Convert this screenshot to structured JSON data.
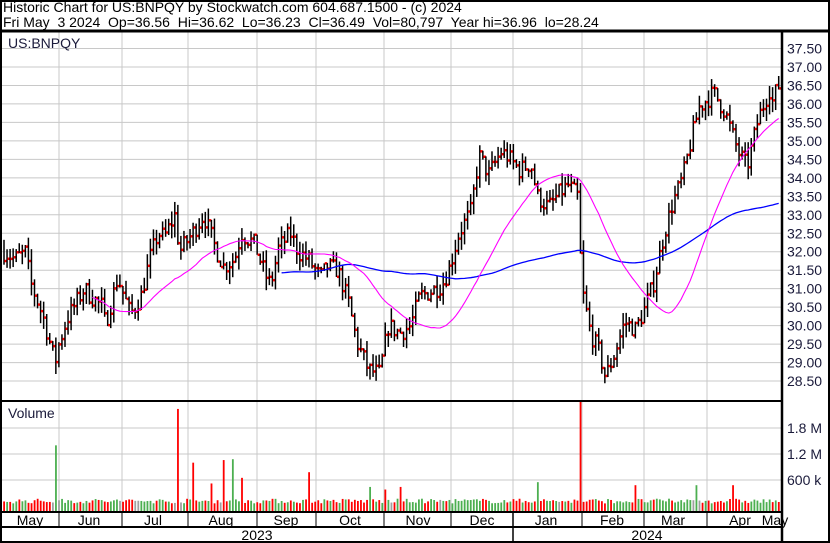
{
  "header": {
    "title_line": "Historic Chart for US:BNPQY by Stockwatch.com 604.687.1500 - (c) 2024",
    "quote_line": "Fri May  3 2024  Op=36.56  Hi=36.62  Lo=36.23  Cl=36.49  Vol=80,797  Year hi=36.96  lo=28.24"
  },
  "chart_data": [
    {
      "type": "ohlc",
      "label": "US:BNPQY",
      "y_ticks": [
        "28.50",
        "29.00",
        "29.50",
        "30.00",
        "30.50",
        "31.00",
        "31.50",
        "32.00",
        "32.50",
        "33.00",
        "33.50",
        "34.00",
        "34.50",
        "35.00",
        "35.50",
        "36.00",
        "36.50",
        "37.00",
        "37.50"
      ],
      "ylim": [
        28.25,
        37.75
      ],
      "grid": true,
      "colors": {
        "bar": "#000000",
        "close_tick": "#ff0000",
        "ma_short": "#ff00ff",
        "ma_long": "#0000ff"
      },
      "approx_closes": [
        [
          "2023-05-04",
          32.0
        ],
        [
          "2023-05-09",
          31.8
        ],
        [
          "2023-05-15",
          32.0
        ],
        [
          "2023-05-17",
          31.2
        ],
        [
          "2023-05-22",
          30.5
        ],
        [
          "2023-05-24",
          30.2
        ],
        [
          "2023-05-30",
          29.0
        ],
        [
          "2023-06-01",
          29.5
        ],
        [
          "2023-06-05",
          30.2
        ],
        [
          "2023-06-08",
          30.5
        ],
        [
          "2023-06-13",
          31.0
        ],
        [
          "2023-06-16",
          30.8
        ],
        [
          "2023-06-22",
          30.5
        ],
        [
          "2023-06-23",
          30.0
        ],
        [
          "2023-06-29",
          31.3
        ],
        [
          "2023-07-05",
          30.3
        ],
        [
          "2023-07-10",
          30.8
        ],
        [
          "2023-07-14",
          31.8
        ],
        [
          "2023-07-18",
          32.5
        ],
        [
          "2023-07-21",
          32.4
        ],
        [
          "2023-07-26",
          33.0
        ],
        [
          "2023-07-28",
          32.0
        ],
        [
          "2023-08-03",
          32.5
        ],
        [
          "2023-08-08",
          33.0
        ],
        [
          "2023-08-14",
          32.0
        ],
        [
          "2023-08-17",
          31.6
        ],
        [
          "2023-08-22",
          31.8
        ],
        [
          "2023-08-25",
          32.5
        ],
        [
          "2023-08-31",
          32.2
        ],
        [
          "2023-09-05",
          31.4
        ],
        [
          "2023-09-08",
          31.1
        ],
        [
          "2023-09-12",
          32.1
        ],
        [
          "2023-09-18",
          32.5
        ],
        [
          "2023-09-22",
          32.0
        ],
        [
          "2023-09-27",
          31.8
        ],
        [
          "2023-10-03",
          31.3
        ],
        [
          "2023-10-06",
          31.6
        ],
        [
          "2023-10-11",
          31.5
        ],
        [
          "2023-10-16",
          30.6
        ],
        [
          "2023-10-18",
          30.0
        ],
        [
          "2023-10-20",
          29.5
        ],
        [
          "2023-10-25",
          28.8
        ],
        [
          "2023-10-30",
          28.7
        ],
        [
          "2023-11-03",
          30.0
        ],
        [
          "2023-11-08",
          29.8
        ],
        [
          "2023-11-13",
          30.0
        ],
        [
          "2023-11-17",
          30.8
        ],
        [
          "2023-11-21",
          30.9
        ],
        [
          "2023-11-27",
          31.1
        ],
        [
          "2023-11-30",
          31.5
        ],
        [
          "2023-12-05",
          32.5
        ],
        [
          "2023-12-11",
          33.1
        ],
        [
          "2023-12-15",
          34.6
        ],
        [
          "2023-12-20",
          34.1
        ],
        [
          "2023-12-26",
          34.7
        ],
        [
          "2023-12-29",
          34.6
        ],
        [
          "2024-01-04",
          34.2
        ],
        [
          "2024-01-09",
          34.4
        ],
        [
          "2024-01-12",
          33.5
        ],
        [
          "2024-01-17",
          33.2
        ],
        [
          "2024-01-22",
          33.6
        ],
        [
          "2024-01-26",
          33.8
        ],
        [
          "2024-01-30",
          33.5
        ],
        [
          "2024-02-01",
          31.0
        ],
        [
          "2024-02-05",
          29.8
        ],
        [
          "2024-02-09",
          29.3
        ],
        [
          "2024-02-12",
          28.6
        ],
        [
          "2024-02-16",
          29.2
        ],
        [
          "2024-02-21",
          30.1
        ],
        [
          "2024-02-26",
          29.9
        ],
        [
          "2024-03-01",
          30.4
        ],
        [
          "2024-03-06",
          31.2
        ],
        [
          "2024-03-11",
          32.5
        ],
        [
          "2024-03-15",
          33.3
        ],
        [
          "2024-03-20",
          34.0
        ],
        [
          "2024-03-25",
          35.2
        ],
        [
          "2024-03-28",
          35.9
        ],
        [
          "2024-04-04",
          36.3
        ],
        [
          "2024-04-09",
          35.8
        ],
        [
          "2024-04-15",
          34.7
        ],
        [
          "2024-04-19",
          34.3
        ],
        [
          "2024-04-24",
          35.6
        ],
        [
          "2024-04-29",
          36.4
        ],
        [
          "2024-04-30",
          36.0
        ],
        [
          "2024-05-01",
          36.2
        ],
        [
          "2024-05-03",
          36.49
        ]
      ]
    },
    {
      "type": "bar",
      "label": "Volume",
      "y_ticks": [
        "600 k",
        "1.2 M",
        "1.8 M"
      ],
      "colors": {
        "up": "#4caf50",
        "down": "#ff0000",
        "flat": "#a0a0a0"
      },
      "spikes": [
        [
          "2023-05-31",
          1400000,
          "up"
        ],
        [
          "2023-07-27",
          2240000,
          "down"
        ],
        [
          "2023-08-03",
          1000000,
          "down"
        ],
        [
          "2023-08-11",
          520000,
          "down"
        ],
        [
          "2023-08-17",
          1060000,
          "down"
        ],
        [
          "2023-08-21",
          1080000,
          "up"
        ],
        [
          "2023-08-25",
          650000,
          "down"
        ],
        [
          "2023-09-27",
          780000,
          "down"
        ],
        [
          "2023-10-26",
          440000,
          "up"
        ],
        [
          "2023-11-02",
          380000,
          "down"
        ],
        [
          "2023-11-08",
          440000,
          "down"
        ],
        [
          "2024-01-12",
          550000,
          "up"
        ],
        [
          "2024-01-31",
          2400000,
          "down"
        ],
        [
          "2024-02-26",
          480000,
          "down"
        ],
        [
          "2024-03-27",
          480000,
          "up"
        ],
        [
          "2024-04-12",
          480000,
          "down"
        ]
      ]
    }
  ],
  "months": [
    "May",
    "Jun",
    "Jul",
    "Aug",
    "Sep",
    "Oct",
    "Nov",
    "Dec",
    "Jan",
    "Feb",
    "Mar",
    "Apr",
    "May"
  ],
  "years": [
    "2023",
    "2024"
  ]
}
